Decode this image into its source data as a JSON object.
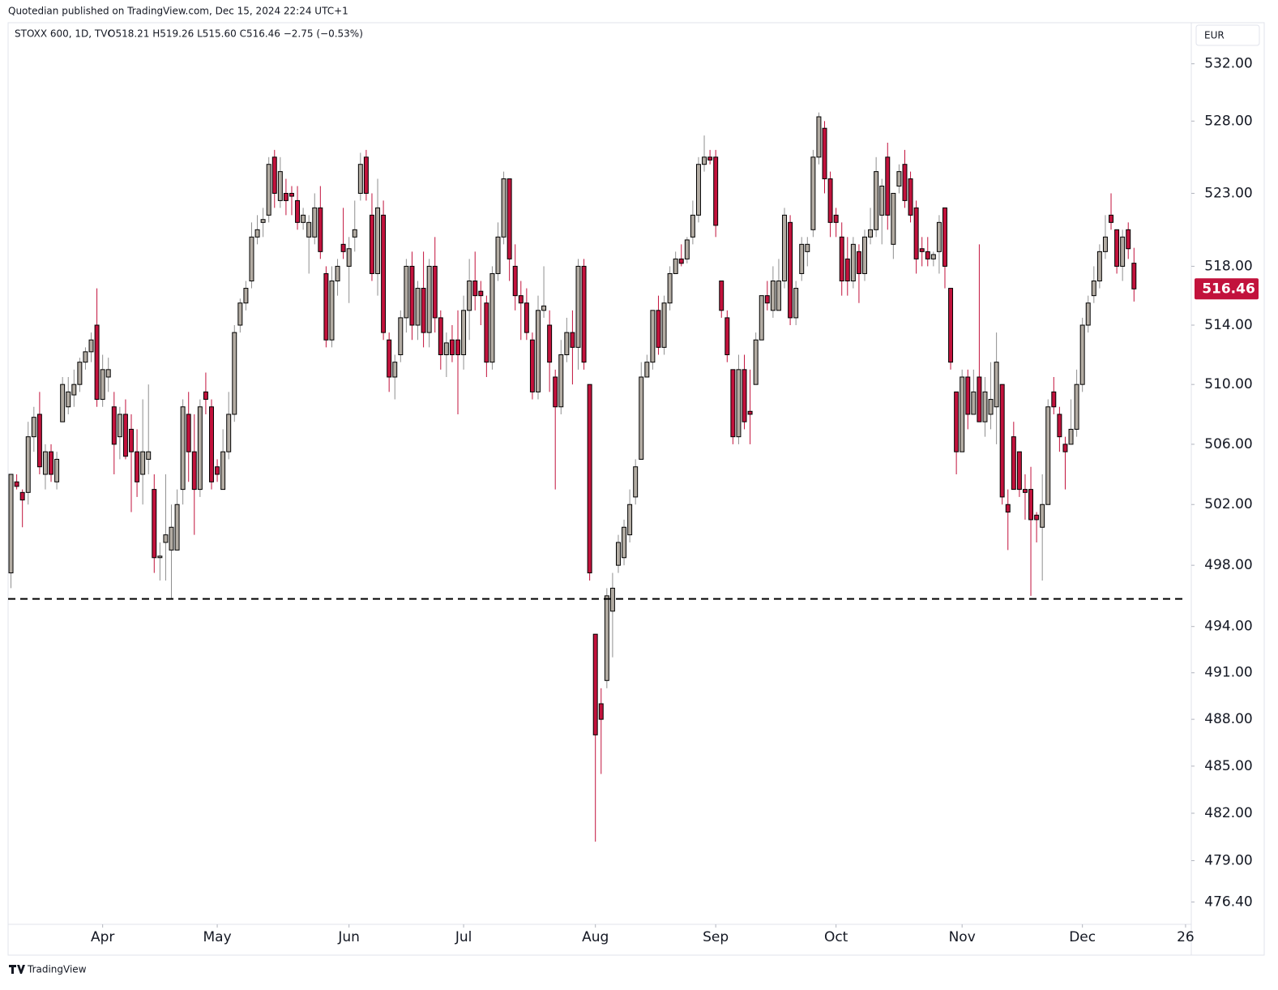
{
  "header": "Quotedian published on TradingView.com, Dec 15, 2024 22:24 UTC+1",
  "footer": "TradingView",
  "chart_data": {
    "type": "candlestick",
    "title": "STOXX 600, 1D, TVC",
    "legend_text": "O518.21 H519.26 L515.60 C516.46 −2.75 (−0.53%)",
    "currency": "EUR",
    "log_scale": true,
    "ylim": [
      475,
      535
    ],
    "yticks": [
      {
        "value": 532,
        "label": "532.00"
      },
      {
        "value": 528,
        "label": "528.00"
      },
      {
        "value": 523,
        "label": "523.00"
      },
      {
        "value": 518,
        "label": "518.00"
      },
      {
        "value": 514,
        "label": "514.00"
      },
      {
        "value": 510,
        "label": "510.00"
      },
      {
        "value": 506,
        "label": "506.00"
      },
      {
        "value": 502,
        "label": "502.00"
      },
      {
        "value": 498,
        "label": "498.00"
      },
      {
        "value": 494,
        "label": "494.00"
      },
      {
        "value": 491,
        "label": "491.00"
      },
      {
        "value": 488,
        "label": "488.00"
      },
      {
        "value": 485,
        "label": "485.00"
      },
      {
        "value": 482,
        "label": "482.00"
      },
      {
        "value": 479,
        "label": "479.00"
      },
      {
        "value": 476.4,
        "label": "476.40"
      }
    ],
    "xlim": [
      -0.5,
      206
    ],
    "xticks": [
      {
        "value": 16,
        "label": "Apr"
      },
      {
        "value": 36,
        "label": "May"
      },
      {
        "value": 59,
        "label": "Jun"
      },
      {
        "value": 79,
        "label": "Jul"
      },
      {
        "value": 102,
        "label": "Aug"
      },
      {
        "value": 123,
        "label": "Sep"
      },
      {
        "value": 144,
        "label": "Oct"
      },
      {
        "value": 166,
        "label": "Nov"
      },
      {
        "value": 187,
        "label": "Dec"
      },
      {
        "value": 205,
        "label": "26"
      }
    ],
    "up_color": "#b3aca3",
    "down_color": "#c2123c",
    "hline": 495.8,
    "last_price": 516.46,
    "ohlc": [
      [
        497.5,
        504,
        496.5,
        504
      ],
      [
        503.5,
        504,
        503,
        503.2
      ],
      [
        502.8,
        503,
        500.5,
        502.3
      ],
      [
        502.8,
        507.5,
        502,
        506.5
      ],
      [
        506.5,
        508.5,
        505.5,
        507.8
      ],
      [
        508,
        509.5,
        504,
        504.5
      ],
      [
        504,
        506,
        503,
        505.5
      ],
      [
        505.5,
        506,
        503.5,
        504
      ],
      [
        503.5,
        505.5,
        503,
        505
      ],
      [
        507.5,
        510.5,
        507.5,
        510
      ],
      [
        508.5,
        510.5,
        508,
        509.5
      ],
      [
        509.3,
        511,
        508.5,
        510
      ],
      [
        510,
        511.8,
        509.5,
        511.5
      ],
      [
        511.5,
        512.5,
        511,
        512.2
      ],
      [
        512.2,
        513.5,
        511.5,
        513
      ],
      [
        514,
        516.5,
        508.5,
        509
      ],
      [
        509,
        512,
        508.5,
        511
      ],
      [
        510.5,
        511.8,
        509.5,
        511
      ],
      [
        508.5,
        509.5,
        504,
        506
      ],
      [
        506.5,
        508.5,
        505,
        508
      ],
      [
        508,
        509,
        505,
        505.2
      ],
      [
        507,
        508,
        501.5,
        505.5
      ],
      [
        505.5,
        507,
        502.5,
        503.5
      ],
      [
        504,
        509,
        502,
        505.5
      ],
      [
        505,
        510,
        504,
        505.5
      ],
      [
        503,
        504,
        497.5,
        498.5
      ],
      [
        498.5,
        499.5,
        497,
        498.6
      ],
      [
        499.5,
        504,
        497,
        500
      ],
      [
        499,
        502,
        495.8,
        500.5
      ],
      [
        499,
        503,
        499,
        502
      ],
      [
        503,
        509,
        502,
        508.5
      ],
      [
        508,
        509.5,
        503.5,
        505.5
      ],
      [
        505.5,
        508,
        500,
        503
      ],
      [
        503,
        509,
        502.5,
        508.5
      ],
      [
        509.5,
        510.8,
        508,
        509
      ],
      [
        508.5,
        509,
        503,
        503.5
      ],
      [
        504.5,
        505,
        503.5,
        504
      ],
      [
        503,
        507,
        503,
        505.5
      ],
      [
        505.5,
        509.5,
        505,
        508
      ],
      [
        508,
        514,
        507.5,
        513.5
      ],
      [
        514,
        515.8,
        513.5,
        515.5
      ],
      [
        515.5,
        517,
        515,
        516.5
      ],
      [
        517,
        521,
        516.5,
        520
      ],
      [
        520,
        521.5,
        519.5,
        520.5
      ],
      [
        521,
        522,
        520,
        521.2
      ],
      [
        521.5,
        525.5,
        521,
        525
      ],
      [
        525.5,
        526,
        522,
        523
      ],
      [
        522.5,
        525.5,
        522,
        524.5
      ],
      [
        523,
        524,
        521.5,
        522.5
      ],
      [
        523,
        523.5,
        521.5,
        522.8
      ],
      [
        522.5,
        523.5,
        520.5,
        521
      ],
      [
        521,
        522,
        520.5,
        521.5
      ],
      [
        520,
        521.5,
        517.5,
        521
      ],
      [
        520,
        523,
        519.5,
        522
      ],
      [
        522,
        523.5,
        518.5,
        519
      ],
      [
        517.5,
        518,
        512.5,
        513
      ],
      [
        513,
        518,
        512.5,
        517
      ],
      [
        517,
        518.5,
        516,
        518
      ],
      [
        519.5,
        522,
        518.5,
        519
      ],
      [
        518,
        520,
        515.5,
        519.2
      ],
      [
        520,
        522.5,
        519,
        520.5
      ],
      [
        523,
        525.8,
        522.5,
        525
      ],
      [
        525.5,
        526,
        522.5,
        523
      ],
      [
        521.5,
        523,
        517,
        517.5
      ],
      [
        517.5,
        524,
        516,
        522
      ],
      [
        521.5,
        522.5,
        513,
        513.5
      ],
      [
        513,
        513.5,
        509.5,
        510.5
      ],
      [
        510.5,
        512,
        509,
        511.5
      ],
      [
        512,
        515,
        511.5,
        514.5
      ],
      [
        514.5,
        518.5,
        513.5,
        518
      ],
      [
        518,
        519,
        513,
        514
      ],
      [
        514,
        517,
        513,
        516.5
      ],
      [
        516.5,
        519,
        512.5,
        513.5
      ],
      [
        513.5,
        518.5,
        512.5,
        518
      ],
      [
        518,
        520,
        513.5,
        514.5
      ],
      [
        514.5,
        515,
        511,
        512
      ],
      [
        512,
        513.5,
        510.5,
        512.8
      ],
      [
        513,
        514,
        511.5,
        512
      ],
      [
        513,
        515,
        508,
        512
      ],
      [
        512,
        516,
        511,
        515
      ],
      [
        515,
        518.5,
        513,
        517
      ],
      [
        517,
        519,
        515,
        516
      ],
      [
        516.3,
        517,
        514,
        516
      ],
      [
        515.5,
        516,
        510.5,
        511.5
      ],
      [
        511.5,
        518,
        511,
        517.5
      ],
      [
        517.5,
        521,
        517,
        520
      ],
      [
        520,
        524.5,
        519.5,
        524
      ],
      [
        524,
        524,
        517,
        518.5
      ],
      [
        518,
        519.5,
        515,
        516
      ],
      [
        516,
        517,
        513,
        515.5
      ],
      [
        515.5,
        516.5,
        513,
        513.5
      ],
      [
        513,
        513.5,
        509,
        509.5
      ],
      [
        509.5,
        516,
        509,
        515
      ],
      [
        515,
        518,
        514.5,
        515.3
      ],
      [
        514,
        515,
        509.5,
        511.5
      ],
      [
        510.5,
        511,
        503,
        508.5
      ],
      [
        508.5,
        513,
        508,
        512
      ],
      [
        512,
        514.5,
        511.5,
        513.5
      ],
      [
        513.5,
        515,
        510,
        512.5
      ],
      [
        512.5,
        518.5,
        511,
        518
      ],
      [
        518,
        518.5,
        511,
        511.5
      ],
      [
        510,
        510,
        497,
        497.5
      ],
      [
        493.5,
        493.5,
        480.2,
        487
      ],
      [
        489,
        490,
        484.5,
        488
      ],
      [
        490.5,
        496.5,
        490,
        496
      ],
      [
        495,
        497.5,
        492,
        496.5
      ],
      [
        498,
        500,
        497.5,
        499.5
      ],
      [
        498.5,
        501,
        498,
        500.5
      ],
      [
        500,
        503,
        499.5,
        502
      ],
      [
        502.5,
        505,
        502,
        504.5
      ],
      [
        505,
        511.5,
        505,
        510.5
      ],
      [
        510.5,
        512,
        510.5,
        511.5
      ],
      [
        511.5,
        515,
        511,
        515
      ],
      [
        515,
        516,
        512,
        512.5
      ],
      [
        512.5,
        516,
        512,
        515.5
      ],
      [
        515.5,
        518,
        515,
        517.5
      ],
      [
        517.5,
        519,
        517.5,
        518.5
      ],
      [
        518.5,
        519.5,
        518,
        518.2
      ],
      [
        518.5,
        520,
        518.2,
        519.8
      ],
      [
        520,
        522.5,
        519.5,
        521.5
      ],
      [
        521.5,
        525.5,
        521,
        525
      ],
      [
        525,
        527,
        524.5,
        525.5
      ],
      [
        525.5,
        526,
        525,
        525.3
      ],
      [
        525.5,
        526,
        520,
        520.8
      ],
      [
        517,
        517,
        514.5,
        515
      ],
      [
        514.5,
        515,
        511.5,
        512
      ],
      [
        511,
        511,
        506,
        506.5
      ],
      [
        506.5,
        512,
        506,
        511
      ],
      [
        511,
        512,
        507,
        507.5
      ],
      [
        508.2,
        511,
        506,
        508
      ],
      [
        510,
        513.5,
        510,
        513
      ],
      [
        513,
        516,
        513,
        516
      ],
      [
        516,
        517,
        515,
        515.5
      ],
      [
        515,
        518,
        514.5,
        517
      ],
      [
        515,
        518.5,
        515,
        517
      ],
      [
        517,
        522,
        516.5,
        521.5
      ],
      [
        521,
        521.5,
        514,
        514.5
      ],
      [
        514.5,
        517,
        514,
        516.5
      ],
      [
        517.5,
        520,
        517,
        519.5
      ],
      [
        519,
        520,
        518,
        519.5
      ],
      [
        520.5,
        526,
        520,
        525.5
      ],
      [
        525.5,
        528.6,
        525,
        528.3
      ],
      [
        527.5,
        528,
        523,
        524
      ],
      [
        524,
        524.5,
        520,
        521
      ],
      [
        521.5,
        522,
        520,
        521
      ],
      [
        520,
        521,
        516,
        517
      ],
      [
        518.5,
        520,
        516,
        517
      ],
      [
        517,
        520,
        516.5,
        519.5
      ],
      [
        519,
        519.5,
        515.5,
        517.5
      ],
      [
        517.5,
        520.5,
        517,
        520
      ],
      [
        520,
        522,
        519.5,
        520.5
      ],
      [
        520.5,
        525.5,
        520,
        524.5
      ],
      [
        521.5,
        524,
        519.5,
        523.5
      ],
      [
        525.5,
        526.5,
        520.5,
        521.5
      ],
      [
        519.5,
        523,
        518.5,
        523
      ],
      [
        523.5,
        525,
        523,
        524.5
      ],
      [
        525,
        526,
        522,
        522.5
      ],
      [
        524,
        524.5,
        521,
        521.5
      ],
      [
        522,
        522.5,
        517.5,
        518.5
      ],
      [
        519.2,
        520,
        518,
        519
      ],
      [
        519,
        520,
        518,
        518.5
      ],
      [
        518.5,
        519,
        518,
        518.8
      ],
      [
        519,
        521.5,
        517.5,
        521
      ],
      [
        522,
        522,
        516.5,
        518
      ],
      [
        516.5,
        516.5,
        511,
        511.5
      ],
      [
        509.5,
        509.5,
        504,
        505.5
      ],
      [
        505.5,
        511,
        505.5,
        510.5
      ],
      [
        510.5,
        511,
        507,
        508
      ],
      [
        508,
        511,
        508,
        509.5
      ],
      [
        510.5,
        519.5,
        507.5,
        507.5
      ],
      [
        507.5,
        510.5,
        506.5,
        509.5
      ],
      [
        508,
        511.5,
        507,
        509
      ],
      [
        508.5,
        513.5,
        506,
        511.5
      ],
      [
        510,
        510,
        502,
        502.5
      ],
      [
        502,
        503,
        499,
        501.5
      ],
      [
        506.5,
        507.5,
        503,
        503
      ],
      [
        505.5,
        505.5,
        502.5,
        503
      ],
      [
        503,
        504,
        501,
        502.8
      ],
      [
        503,
        504.5,
        496,
        501
      ],
      [
        501.3,
        501.5,
        499.5,
        501
      ],
      [
        500.5,
        504,
        497,
        502
      ],
      [
        502,
        509,
        502,
        508.5
      ],
      [
        509.5,
        510.5,
        508,
        508.5
      ],
      [
        508,
        508.5,
        505.5,
        506.5
      ],
      [
        506,
        506.5,
        503,
        505.5
      ],
      [
        506,
        509,
        506,
        507
      ],
      [
        507,
        511,
        506.5,
        510
      ],
      [
        510,
        514.5,
        509.5,
        514
      ],
      [
        514,
        516,
        513.5,
        515.5
      ],
      [
        516,
        518,
        515.5,
        517
      ],
      [
        517,
        519.5,
        516.5,
        519
      ],
      [
        519,
        521.5,
        518.5,
        520
      ],
      [
        521.5,
        523,
        520.5,
        521
      ],
      [
        520.5,
        520.5,
        517.5,
        518
      ],
      [
        518,
        520.5,
        517,
        520
      ],
      [
        520.5,
        521,
        518.5,
        519.2
      ],
      [
        518.21,
        519.26,
        515.6,
        516.46
      ]
    ]
  }
}
